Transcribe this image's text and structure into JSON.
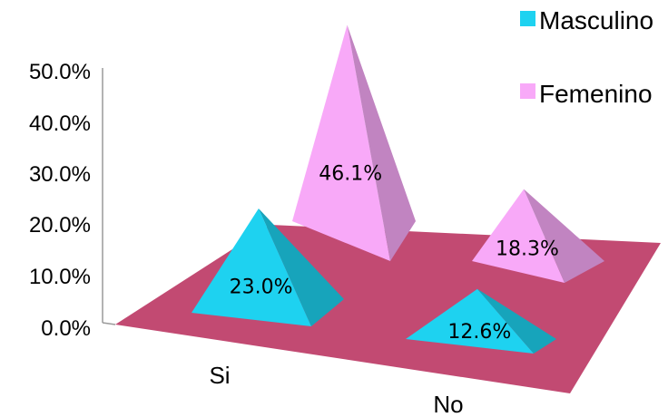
{
  "chart_data": {
    "type": "bar",
    "style": "3d-pyramid",
    "categories": [
      "Si",
      "No"
    ],
    "series": [
      {
        "name": "Masculino",
        "values": [
          23.0,
          12.6
        ],
        "labels": [
          "23.0%",
          "12.6%"
        ]
      },
      {
        "name": "Femenino",
        "values": [
          46.1,
          18.3
        ],
        "labels": [
          "46.1%",
          "18.3%"
        ]
      }
    ],
    "yticks": [
      "0.0%",
      "10.0%",
      "20.0%",
      "30.0%",
      "40.0%",
      "50.0%"
    ],
    "ylim": [
      0,
      50
    ],
    "legend_position": "top-right",
    "colors": {
      "Masculino": "#1ed2f0",
      "Femenino": "#f8a9f8",
      "floor": "#c24a72",
      "axis": "#9a9a9a"
    }
  }
}
